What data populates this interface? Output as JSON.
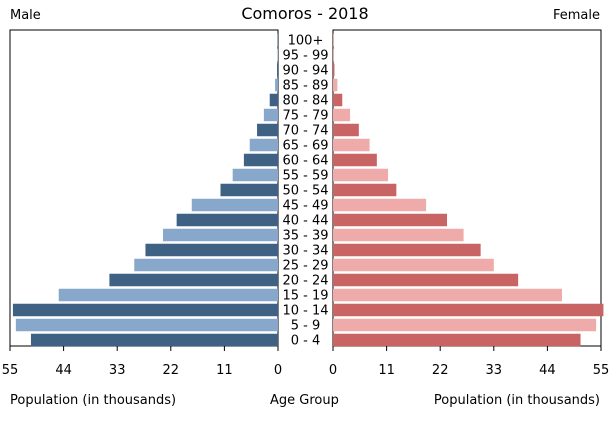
{
  "chart_data": {
    "type": "bar",
    "title": "Comoros - 2018",
    "left_label": "Male",
    "right_label": "Female",
    "xlabel_left": "Population (in thousands)",
    "xlabel_center": "Age Group",
    "xlabel_right": "Population (in thousands)",
    "xlim": [
      0,
      55
    ],
    "ticks": [
      "55",
      "44",
      "33",
      "22",
      "11",
      "0"
    ],
    "ticks_right": [
      "0",
      "11",
      "22",
      "33",
      "44",
      "55"
    ],
    "tick_values": [
      0,
      11,
      22,
      33,
      44,
      55
    ],
    "categories": [
      "100+",
      "95 - 99",
      "90 - 94",
      "85 - 89",
      "80 - 84",
      "75 - 79",
      "70 - 74",
      "65 - 69",
      "60 - 64",
      "55 - 59",
      "50 - 54",
      "45 - 49",
      "40 - 44",
      "35 - 39",
      "30 - 34",
      "25 - 29",
      "20 - 24",
      "15 - 19",
      "10 - 14",
      "5 - 9",
      "0 - 4"
    ],
    "series": [
      {
        "name": "Male",
        "values": [
          0.1,
          0.1,
          0.2,
          0.6,
          1.7,
          2.9,
          4.3,
          5.8,
          7.0,
          9.3,
          11.8,
          17.7,
          20.8,
          23.6,
          27.2,
          29.5,
          34.6,
          45.0,
          54.4,
          53.8,
          50.7
        ]
      },
      {
        "name": "Female",
        "values": [
          0.1,
          0.2,
          0.3,
          0.9,
          1.9,
          3.5,
          5.3,
          7.5,
          9.0,
          11.3,
          13.0,
          19.1,
          23.4,
          26.8,
          30.3,
          33.0,
          38.0,
          47.0,
          55.5,
          54.0,
          50.8
        ]
      }
    ],
    "colors": {
      "male_dark": "#3f6184",
      "male_light": "#88a8cb",
      "female_dark": "#c86464",
      "female_light": "#efaaaa"
    },
    "grid": false
  }
}
